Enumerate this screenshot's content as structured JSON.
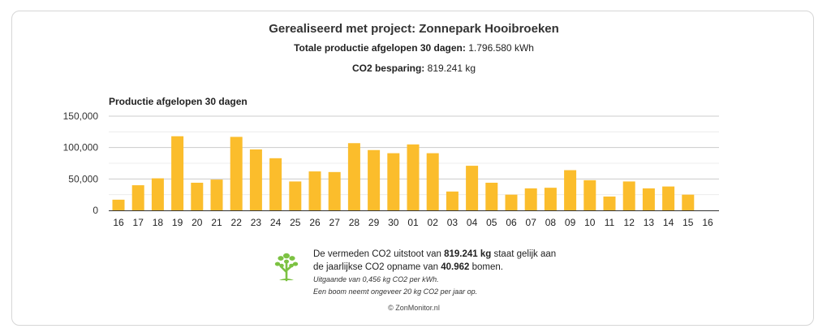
{
  "header": {
    "title": "Gerealiseerd met project: Zonnepark Hooibroeken",
    "total_label": "Totale productie afgelopen 30 dagen:",
    "total_value": "1.796.580 kWh",
    "co2_label": "CO2 besparing:",
    "co2_value": "819.241 kg"
  },
  "chart_data": {
    "type": "bar",
    "title": "Productie afgelopen 30 dagen",
    "categories": [
      "16",
      "17",
      "18",
      "19",
      "20",
      "21",
      "22",
      "23",
      "24",
      "25",
      "26",
      "27",
      "28",
      "29",
      "30",
      "01",
      "02",
      "03",
      "04",
      "05",
      "06",
      "07",
      "08",
      "09",
      "10",
      "11",
      "12",
      "13",
      "14",
      "15",
      "16"
    ],
    "values": [
      17000,
      40000,
      51000,
      118000,
      44000,
      49000,
      117000,
      97000,
      83000,
      46000,
      62000,
      61000,
      107000,
      96000,
      91000,
      105000,
      91000,
      30000,
      71000,
      44000,
      25000,
      35000,
      36000,
      64000,
      48000,
      22000,
      46000,
      35000,
      38000,
      25000,
      null
    ],
    "y_ticks": [
      "0",
      "50,000",
      "100,000",
      "150,000"
    ],
    "ylim": [
      0,
      150000
    ],
    "grid": true,
    "bar_color": "#fbbd2c"
  },
  "info": {
    "line1_a": "De vermeden CO2 uitstoot van ",
    "line1_b": "819.241 kg",
    "line1_c": " staat gelijk aan",
    "line2_a": "de jaarlijkse CO2 opname van ",
    "line2_b": "40.962",
    "line2_c": " bomen.",
    "note1": "Uitgaande van 0,456 kg CO2 per kWh.",
    "note2": "Een boom neemt ongeveer 20 kg CO2 per jaar op.",
    "tree_icon": "tree-icon",
    "tree_color": "#7cc242"
  },
  "footer": {
    "copyright": "© ZonMonitor.nl"
  }
}
